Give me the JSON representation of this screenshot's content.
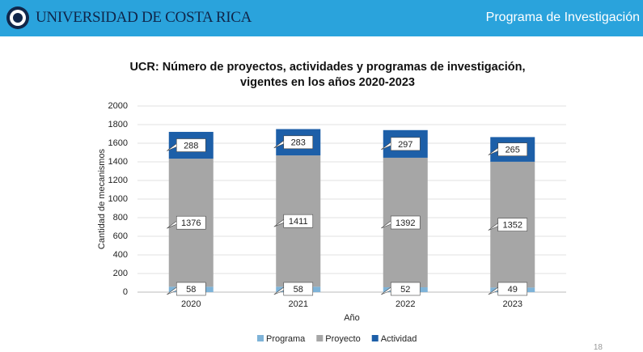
{
  "header": {
    "institution": "UNIVERSIDAD DE COSTA RICA",
    "program": "Programa de Investigación"
  },
  "page_number": "18",
  "chart_data": {
    "type": "stacked_bar",
    "title": "UCR: Número de proyectos, actividades y programas de investigación, vigentes en los años 2020-2023",
    "x_label": "Año",
    "y_label": "Cantidad de mecanismos",
    "categories": [
      "2020",
      "2021",
      "2022",
      "2023"
    ],
    "series": [
      {
        "name": "Programa",
        "color": "#7eb3d8",
        "values": [
          58,
          58,
          52,
          49
        ]
      },
      {
        "name": "Proyecto",
        "color": "#a6a6a6",
        "values": [
          1376,
          1411,
          1392,
          1352
        ]
      },
      {
        "name": "Actividad",
        "color": "#1d5fa8",
        "values": [
          288,
          283,
          297,
          265
        ]
      }
    ],
    "ylim": [
      0,
      2000
    ],
    "yticks": [
      0,
      200,
      400,
      600,
      800,
      1000,
      1200,
      1400,
      1600,
      1800,
      2000
    ],
    "grid": true,
    "legend": "bottom"
  }
}
